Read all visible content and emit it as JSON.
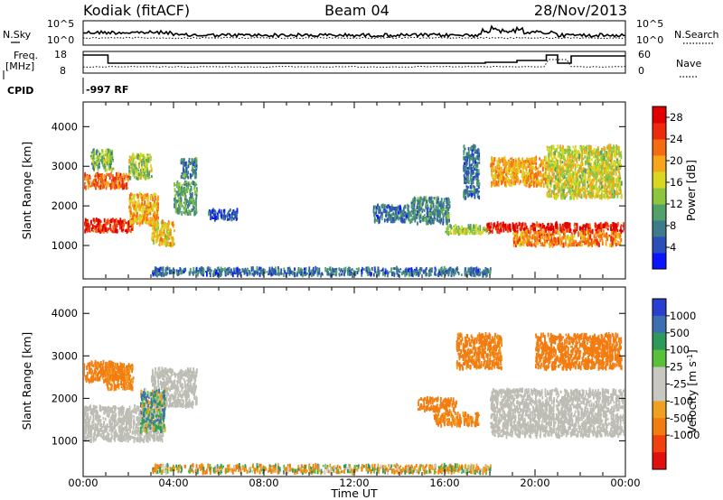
{
  "header": {
    "station": "Kodiak (fitACF)",
    "beam": "Beam 04",
    "date": "28/Nov/2013"
  },
  "top_panels": {
    "nsky_label": "N.Sky",
    "nsky_ticks": [
      "10^5",
      "10^0"
    ],
    "nsearch_label": "N.Search",
    "nsearch_ticks": [
      "10^5",
      "10^0"
    ],
    "freq_label_line1": "Freq.",
    "freq_label_line2": "[MHz]",
    "freq_ticks": [
      "18",
      "8"
    ],
    "nave_label": "Nave",
    "nave_ticks": [
      "60",
      "0"
    ],
    "cpid_label": "CPID",
    "cpid_value": "-997 RF"
  },
  "colors": {
    "power_scale": [
      "#0a14ff",
      "#2a4fb8",
      "#3d7a8a",
      "#52a06a",
      "#8cc63e",
      "#d9d820",
      "#f7a51b",
      "#f46b12",
      "#ee2a0e",
      "#e00000"
    ],
    "velocity_scale": [
      "#2a3fd0",
      "#3c6fb0",
      "#2e9a5a",
      "#5ac03a",
      "#c8c8c0",
      "#c8c8c0",
      "#f0a020",
      "#f37c10",
      "#f04010",
      "#e01010"
    ],
    "ground_scatter": "#bdbdb5"
  },
  "chart_data": [
    {
      "type": "heatmap",
      "title": "Power",
      "xlabel": "Time UT",
      "ylabel": "Slant Range [km]",
      "x_ticks": [
        "00:00",
        "04:00",
        "08:00",
        "12:00",
        "16:00",
        "20:00",
        "00:00"
      ],
      "xlim_hours": [
        0,
        24
      ],
      "ylim": [
        180,
        4600
      ],
      "y_ticks": [
        1000,
        2000,
        3000,
        4000
      ],
      "colorbar": {
        "label": "Power [dB]",
        "ticks": [
          "4",
          "8",
          "12",
          "16",
          "20",
          "24",
          "28"
        ],
        "range": [
          0,
          30
        ]
      },
      "regions": [
        {
          "t": [
            0.0,
            2.2
          ],
          "r": [
            1350,
            1650
          ],
          "level": 27
        },
        {
          "t": [
            0.0,
            2.0
          ],
          "r": [
            2450,
            2800
          ],
          "level": 24
        },
        {
          "t": [
            0.3,
            1.3
          ],
          "r": [
            2900,
            3400
          ],
          "level": 12
        },
        {
          "t": [
            2.0,
            3.3
          ],
          "r": [
            1500,
            2300
          ],
          "level": 20
        },
        {
          "t": [
            2.0,
            3.0
          ],
          "r": [
            2700,
            3300
          ],
          "level": 14
        },
        {
          "t": [
            3.0,
            4.0
          ],
          "r": [
            1000,
            1600
          ],
          "level": 18
        },
        {
          "t": [
            4.0,
            5.0
          ],
          "r": [
            1800,
            2600
          ],
          "level": 10
        },
        {
          "t": [
            4.3,
            5.0
          ],
          "r": [
            2700,
            3200
          ],
          "level": 8
        },
        {
          "t": [
            5.5,
            6.8
          ],
          "r": [
            1650,
            1900
          ],
          "level": 4
        },
        {
          "t": [
            3.0,
            18.0
          ],
          "r": [
            250,
            420
          ],
          "level": 6
        },
        {
          "t": [
            12.8,
            14.5
          ],
          "r": [
            1600,
            2000
          ],
          "level": 6
        },
        {
          "t": [
            14.5,
            16.2
          ],
          "r": [
            1550,
            2200
          ],
          "level": 8
        },
        {
          "t": [
            16.0,
            18.0
          ],
          "r": [
            1300,
            1500
          ],
          "level": 14
        },
        {
          "t": [
            16.8,
            17.5
          ],
          "r": [
            2200,
            3500
          ],
          "level": 6
        },
        {
          "t": [
            17.8,
            24.0
          ],
          "r": [
            1350,
            1550
          ],
          "level": 29
        },
        {
          "t": [
            18.0,
            20.5
          ],
          "r": [
            2500,
            3200
          ],
          "level": 20
        },
        {
          "t": [
            19.0,
            23.8
          ],
          "r": [
            1000,
            1350
          ],
          "level": 22
        },
        {
          "t": [
            20.5,
            23.8
          ],
          "r": [
            2200,
            3500
          ],
          "level": 16
        }
      ]
    },
    {
      "type": "heatmap",
      "title": "Velocity",
      "xlabel": "Time UT",
      "ylabel": "Slant Range [km]",
      "x_ticks": [
        "00:00",
        "04:00",
        "08:00",
        "12:00",
        "16:00",
        "20:00",
        "00:00"
      ],
      "xlim_hours": [
        0,
        24
      ],
      "ylim": [
        180,
        4600
      ],
      "y_ticks": [
        1000,
        2000,
        3000,
        4000
      ],
      "colorbar": {
        "label": "Velocity [m s^-1]",
        "ticks": [
          "1000",
          "500",
          "100",
          "25",
          "-25",
          "-100",
          "-500",
          "-1000"
        ]
      },
      "regions": [
        {
          "t": [
            0.0,
            3.5
          ],
          "r": [
            1000,
            1800
          ],
          "kind": "ground"
        },
        {
          "t": [
            3.0,
            5.0
          ],
          "r": [
            1800,
            2700
          ],
          "kind": "ground"
        },
        {
          "t": [
            0.0,
            1.8
          ],
          "r": [
            2400,
            2850
          ],
          "v": -200
        },
        {
          "t": [
            1.0,
            2.2
          ],
          "r": [
            2200,
            2800
          ],
          "v": -150
        },
        {
          "t": [
            2.5,
            3.6
          ],
          "r": [
            1200,
            2200
          ],
          "v": 50
        },
        {
          "t": [
            3.0,
            18.0
          ],
          "r": [
            250,
            420
          ],
          "v": -50
        },
        {
          "t": [
            14.8,
            16.5
          ],
          "r": [
            1700,
            2000
          ],
          "v": -300
        },
        {
          "t": [
            15.5,
            17.5
          ],
          "r": [
            1350,
            1650
          ],
          "v": -150
        },
        {
          "t": [
            16.5,
            18.5
          ],
          "r": [
            2700,
            3500
          ],
          "v": -200
        },
        {
          "t": [
            18.0,
            24.0
          ],
          "r": [
            1100,
            2200
          ],
          "kind": "ground"
        },
        {
          "t": [
            20.0,
            23.8
          ],
          "r": [
            2700,
            3500
          ],
          "v": -300
        }
      ]
    }
  ]
}
